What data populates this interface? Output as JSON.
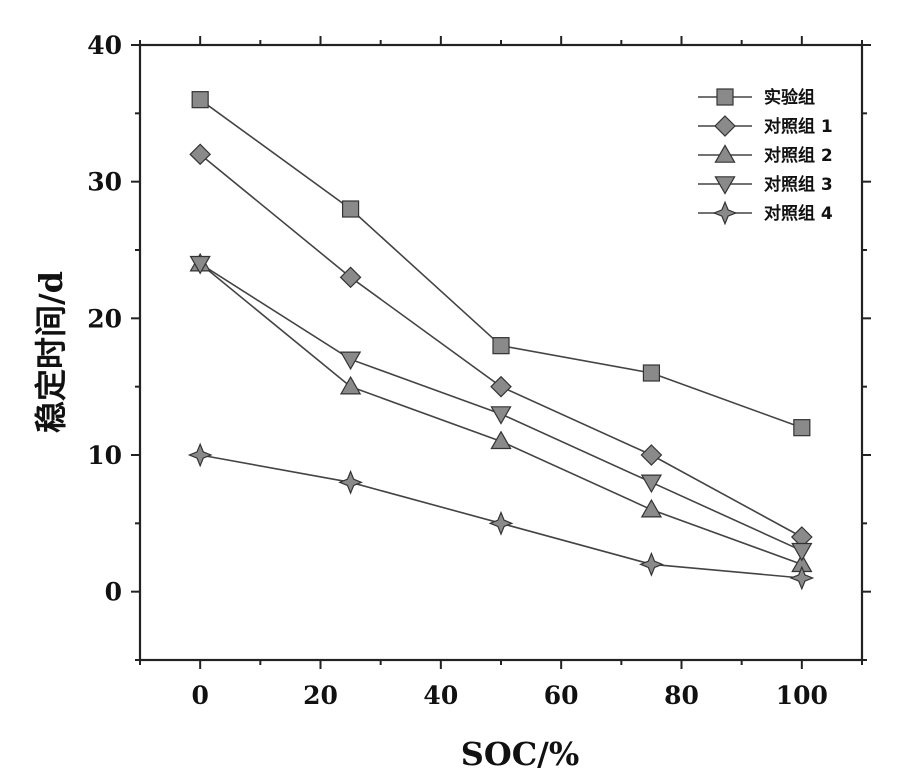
{
  "chart_data": {
    "type": "line",
    "title": "",
    "xlabel": "SOC/%",
    "ylabel": "稳定时间/d",
    "xlim": [
      -10,
      110
    ],
    "ylim": [
      -5,
      40
    ],
    "x_ticks": [
      0,
      20,
      40,
      60,
      80,
      100
    ],
    "y_ticks": [
      0,
      10,
      20,
      30,
      40
    ],
    "x": [
      0,
      25,
      50,
      75,
      100
    ],
    "legend_position": "top-right",
    "grid": false,
    "series": [
      {
        "name": "实验组",
        "marker": "square",
        "values": [
          36,
          28,
          18,
          16,
          12
        ]
      },
      {
        "name": "对照组 1",
        "marker": "diamond",
        "values": [
          32,
          23,
          15,
          10,
          4
        ]
      },
      {
        "name": "对照组 2",
        "marker": "triangle-up",
        "values": [
          24,
          15,
          11,
          6,
          2
        ]
      },
      {
        "name": "对照组 3",
        "marker": "triangle-down",
        "values": [
          24,
          17,
          13,
          8,
          3
        ]
      },
      {
        "name": "对照组 4",
        "marker": "star",
        "values": [
          10,
          8,
          5,
          2,
          1
        ]
      }
    ]
  },
  "colors": {
    "marker_fill": "#8a8a8a",
    "marker_stroke": "#333333",
    "line": "#444444",
    "axis": "#222222"
  }
}
